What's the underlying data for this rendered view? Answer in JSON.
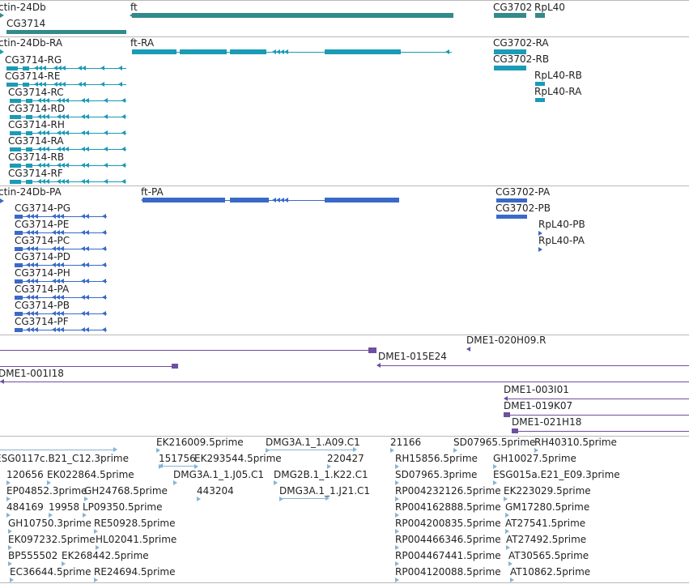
{
  "colors": {
    "gene": "#338a8a",
    "transcript": "#1a9bb6",
    "protein": "#3a6ac8",
    "clone": "#6e4fa0",
    "est": "#84b4d8",
    "separator": "#b8b8b8"
  },
  "tracks": {
    "genes": {
      "labels": [
        "ctin-24Db",
        "CG3714",
        "ft",
        "CG3702",
        "RpL40"
      ]
    },
    "transcripts": {
      "labels": [
        "ctin-24Db-RA",
        "CG3714-RG",
        "CG3714-RE",
        "CG3714-RC",
        "CG3714-RD",
        "CG3714-RH",
        "CG3714-RA",
        "CG3714-RB",
        "CG3714-RF",
        "ft-RA",
        "CG3702-RA",
        "CG3702-RB",
        "RpL40-RB",
        "RpL40-RA"
      ]
    },
    "proteins": {
      "labels": [
        "ctin-24Db-PA",
        "CG3714-PG",
        "CG3714-PE",
        "CG3714-PC",
        "CG3714-PD",
        "CG3714-PH",
        "CG3714-PA",
        "CG3714-PB",
        "CG3714-PF",
        "ft-PA",
        "CG3702-PA",
        "CG3702-PB",
        "RpL40-PB",
        "RpL40-PA"
      ]
    },
    "clones": {
      "labels": [
        "DME1-020H09.R",
        "DME1-015E24",
        "DME1-001I18",
        "DME1-003I01",
        "DME1-019K07",
        "DME1-021H18"
      ]
    },
    "ests": {
      "labels": [
        "EK216009.5prime",
        "DMG3A.1_1.A09.C1",
        "21166",
        "SD07965.5prime",
        "RH40310.5prime",
        "ESG0117c.B21_C12.3prime",
        "151756",
        "EK293544.5prime",
        "220427",
        "RH15856.5prime",
        "GH10027.5prime",
        "120656",
        "EK022864.5prime",
        "DMG3A.1_1.J05.C1",
        "DMG2B.1_1.K22.C1",
        "SD07965.3prime",
        "ESG015a.E21_E09.3prime",
        "EP04852.3prime",
        "GH24768.5prime",
        "443204",
        "DMG3A.1_1.J21.C1",
        "RP004232126.5prime",
        "EK223029.5prime",
        "484169",
        "19958",
        "LP09350.5prime",
        "RP004162888.5prime",
        "GM17280.5prime",
        "GH10750.3prime",
        "RE50928.5prime",
        "RP004200835.5prime",
        "AT27541.5prime",
        "EK097232.5prime",
        "HL02041.5prime",
        "RP004466346.5prime",
        "AT27492.5prime",
        "BP555502",
        "EK268442.5prime",
        "RP004467441.5prime",
        "AT30565.5prime",
        "EC36644.5prime",
        "RE24694.5prime",
        "RP004120088.5prime",
        "AT10862.5prime"
      ]
    }
  }
}
